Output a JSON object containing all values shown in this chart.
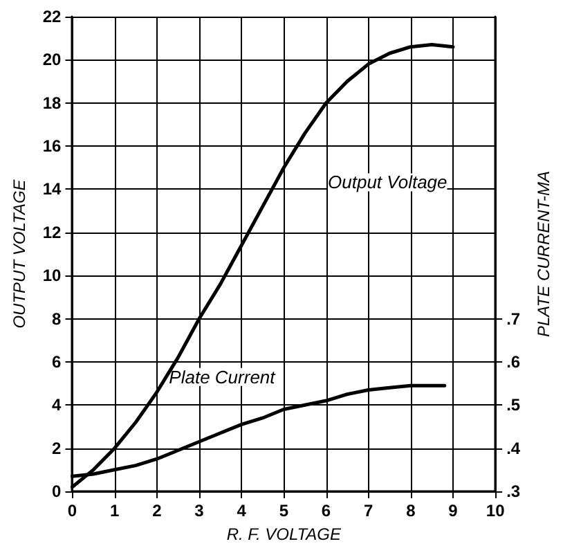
{
  "chart_data": {
    "type": "line",
    "xlabel": "R. F. VOLTAGE",
    "ylabel": "OUTPUT VOLTAGE",
    "y2label": "PLATE CURRENT-MA",
    "xlim": [
      0,
      10
    ],
    "xticks": [
      0,
      1,
      2,
      3,
      4,
      5,
      6,
      7,
      8,
      9,
      10
    ],
    "ylim": [
      0,
      22
    ],
    "yticks": [
      0,
      2,
      4,
      6,
      8,
      10,
      12,
      14,
      16,
      18,
      20,
      22
    ],
    "y2lim": [
      0.3,
      1.4
    ],
    "y2ticks": [
      {
        "value": 0.3,
        "label": ".3"
      },
      {
        "value": 0.4,
        "label": ".4"
      },
      {
        "value": 0.5,
        "label": ".5"
      },
      {
        "value": 0.6,
        "label": ".6"
      },
      {
        "value": 0.7,
        "label": ".7"
      }
    ],
    "grid": true,
    "marker": "none",
    "line_style": "solid",
    "series": [
      {
        "color": "#000000",
        "x": [
          0,
          0.5,
          1,
          1.5,
          2,
          2.5,
          3,
          3.5,
          4,
          4.5,
          5,
          5.5,
          6,
          6.5,
          7,
          7.5,
          8,
          8.5,
          9
        ],
        "values": [
          0.2,
          1,
          2,
          3.2,
          4.6,
          6.2,
          8,
          9.6,
          11.4,
          13.2,
          15,
          16.6,
          18,
          19,
          19.8,
          20.3,
          20.6,
          20.7,
          20.6
        ]
      },
      {
        "color": "#000000",
        "axis": "y2",
        "x": [
          0,
          0.5,
          1,
          1.5,
          2,
          2.5,
          3,
          3.5,
          4,
          4.5,
          5,
          5.5,
          6,
          6.5,
          7,
          7.5,
          8,
          8.8
        ],
        "values": [
          0.335,
          0.34,
          0.35,
          0.36,
          0.375,
          0.395,
          0.415,
          0.435,
          0.455,
          0.47,
          0.49,
          0.5,
          0.51,
          0.525,
          0.535,
          0.54,
          0.545,
          0.545
        ]
      }
    ],
    "annotations": [
      "Output Voltage",
      "Plate Current"
    ]
  }
}
